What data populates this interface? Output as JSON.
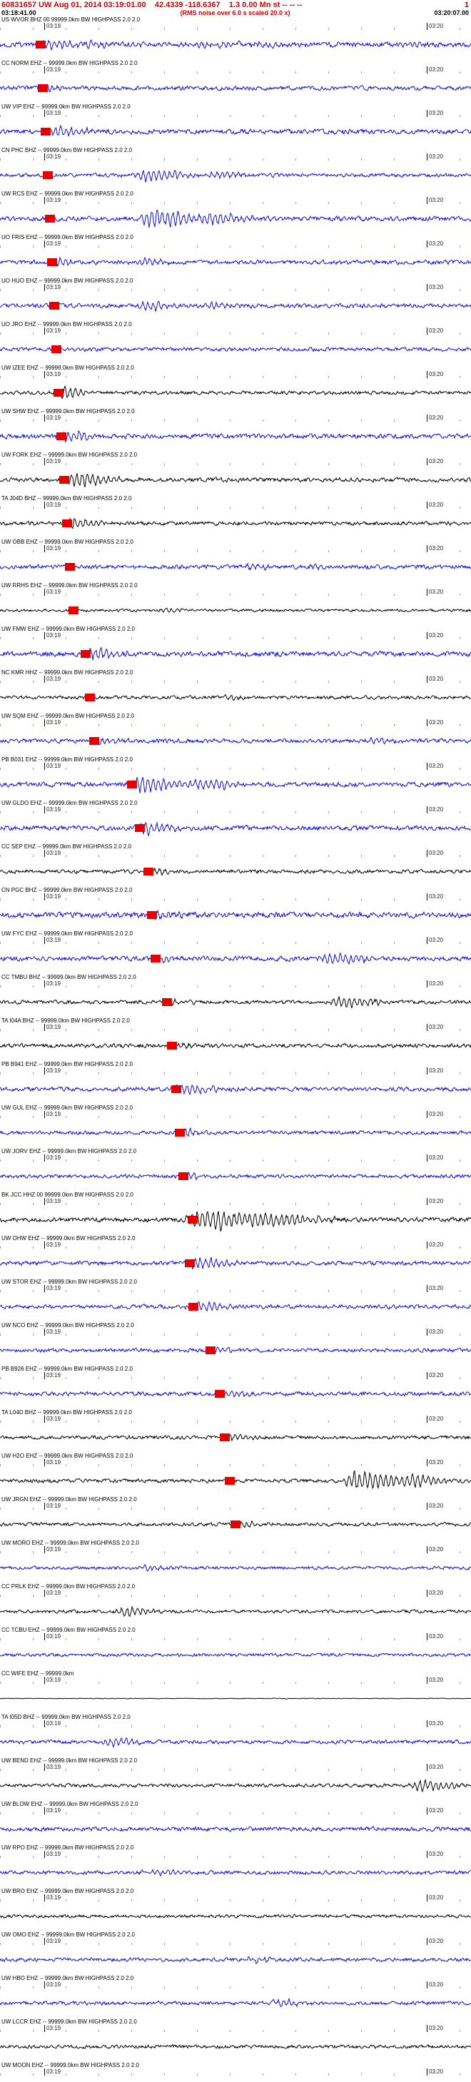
{
  "colors": {
    "b": "#0d0de0",
    "k": "#000000",
    "red": "#e60000",
    "header": "#d40000"
  },
  "header": {
    "event_line": "60831657 UW Aug 01, 2014 03:19:01.00    42.4339 -118.6367    1.3 0.00 Mn st -- -- --",
    "event_flag": "1",
    "window_start": "03:18:41.00",
    "rms_note": "(RMS noise over 6.0 s scaled 20.0 x)",
    "window_end": "03:20:07.00"
  },
  "axis": {
    "tick_left_label": "03:19",
    "tick_right_label": "03:20",
    "tick_left_x": 62,
    "tick_right_x": 598
  },
  "traces": [
    {
      "l": "US WVOR BHZ 00 99999.0km BW HIGHPASS 2.0 2.0",
      "c": "b",
      "p": 57,
      "n": 2.2,
      "b": [
        [
          70,
          35,
          8
        ],
        [
          130,
          60,
          4
        ],
        [
          300,
          120,
          3
        ]
      ]
    },
    {
      "l": "CC NORM EHZ -- 99999.0km BW HIGHPASS 2.0 2.0",
      "c": "b",
      "p": 60,
      "n": 1.8,
      "b": [
        [
          70,
          25,
          5
        ]
      ]
    },
    {
      "l": "UW VIP EHZ -- 99999.0km BW HIGHPASS 2.0 2.0",
      "c": "b",
      "p": 64,
      "n": 2.0,
      "b": [
        [
          76,
          30,
          7
        ],
        [
          110,
          40,
          4
        ]
      ]
    },
    {
      "l": "CN PHC BHZ -- 99999.0km BW HIGHPASS 2.0 2.0",
      "c": "b",
      "p": 67,
      "n": 1.6,
      "b": [
        [
          205,
          55,
          9
        ],
        [
          300,
          40,
          5
        ]
      ]
    },
    {
      "l": "UW RCS EHZ -- 99999.0km BW HIGHPASS 2.0 2.0",
      "c": "b",
      "p": 70,
      "n": 2.0,
      "b": [
        [
          215,
          70,
          13
        ],
        [
          300,
          50,
          7
        ]
      ]
    },
    {
      "l": "UO FRIS EHZ -- 99999.0km BW HIGHPASS 2.0 2.0",
      "c": "b",
      "p": 73,
      "n": 1.8,
      "b": [
        [
          80,
          25,
          5
        ],
        [
          205,
          40,
          4
        ]
      ]
    },
    {
      "l": "UO HUO EHZ -- 99999.0km BW HIGHPASS 2.0 2.0",
      "c": "b",
      "p": 76,
      "n": 1.8,
      "b": [
        [
          205,
          45,
          6
        ],
        [
          300,
          35,
          4
        ]
      ]
    },
    {
      "l": "UO JRO EHZ -- 99999.0km BW HIGHPASS 2.0 2.0",
      "c": "b",
      "p": 79,
      "n": 1.6,
      "b": [
        [
          90,
          20,
          3
        ]
      ]
    },
    {
      "l": "UW IZEE EHZ -- 99999.0km BW HIGHPASS 2.0 2.0",
      "c": "k",
      "p": 82,
      "n": 1.5,
      "b": [
        [
          88,
          30,
          9
        ]
      ]
    },
    {
      "l": "UW SHW EHZ -- 99999.0km BW HIGHPASS 2.0 2.0",
      "c": "b",
      "p": 86,
      "n": 2.0,
      "b": [
        [
          92,
          35,
          10
        ]
      ]
    },
    {
      "l": "UW FORK EHZ -- 99999.0km BW HIGHPASS 2.0 2.0",
      "c": "k",
      "p": 90,
      "n": 1.8,
      "b": [
        [
          108,
          50,
          10
        ]
      ]
    },
    {
      "l": "TA J04D BHZ -- 99999.0km BW HIGHPASS 2.0 2.0",
      "c": "k",
      "p": 94,
      "n": 1.6,
      "b": [
        [
          100,
          40,
          8
        ]
      ]
    },
    {
      "l": "UW OBB EHZ -- 99999.0km BW HIGHPASS 2.0 2.0",
      "c": "b",
      "p": 98,
      "n": 1.8,
      "b": [
        [
          350,
          30,
          4
        ],
        [
          440,
          25,
          4
        ]
      ]
    },
    {
      "l": "UW RRHS EHZ -- 99999.0km BW HIGHPASS 2.0 2.0",
      "c": "k",
      "p": 103,
      "n": 1.2,
      "b": [
        [
          230,
          30,
          3
        ]
      ]
    },
    {
      "l": "UW FMW EHZ -- 99999.0km BW HIGHPASS 2.0 2.0",
      "c": "b",
      "p": 120,
      "n": 2.2,
      "b": [
        [
          128,
          40,
          7
        ]
      ]
    },
    {
      "l": "NC KMR HHZ -- 99999.0km BW HIGHPASS 2.0 2.0",
      "c": "k",
      "p": 126,
      "n": 1.5,
      "b": [
        [
          320,
          25,
          3
        ]
      ]
    },
    {
      "l": "UW SQM EHZ -- 99999.0km BW HIGHPASS 2.0 2.0",
      "c": "b",
      "p": 132,
      "n": 1.8,
      "b": [
        [
          140,
          30,
          5
        ],
        [
          520,
          30,
          4
        ]
      ]
    },
    {
      "l": "PB B031 EHZ -- 99999.0km BW HIGHPASS 2.0 2.0",
      "c": "b",
      "p": 185,
      "n": 2.0,
      "b": [
        [
          195,
          60,
          12
        ],
        [
          280,
          60,
          6
        ]
      ]
    },
    {
      "l": "UW GLDO EHZ -- 99999.0km BW HIGHPASS 2.0 2.0",
      "c": "b",
      "p": 196,
      "n": 2.0,
      "b": [
        [
          205,
          45,
          8
        ]
      ]
    },
    {
      "l": "CC SEP EHZ -- 99999.0km BW HIGHPASS 2.0 2.0",
      "c": "k",
      "p": 208,
      "n": 1.6,
      "b": [
        [
          215,
          30,
          4
        ]
      ]
    },
    {
      "l": "CN PGC BHZ -- 99999.0km BW HIGHPASS 2.0 2.0",
      "c": "b",
      "p": 213,
      "n": 2.4,
      "b": [
        [
          220,
          35,
          5
        ]
      ]
    },
    {
      "l": "UW FYC EHZ -- 99999.0km BW HIGHPASS 2.0 2.0",
      "c": "b",
      "p": 218,
      "n": 2.0,
      "b": [
        [
          225,
          30,
          4
        ],
        [
          465,
          55,
          8
        ]
      ]
    },
    {
      "l": "CC TMBU BHZ -- 99999.0km BW HIGHPASS 2.0 2.0",
      "c": "k",
      "p": 234,
      "n": 1.6,
      "b": [
        [
          240,
          25,
          4
        ],
        [
          478,
          50,
          8
        ]
      ]
    },
    {
      "l": "TA I04A BHZ -- 99999.0km BW HIGHPASS 2.0 2.0",
      "c": "k",
      "p": 241,
      "n": 1.8,
      "b": [
        [
          248,
          25,
          4
        ]
      ]
    },
    {
      "l": "PB B941 EHZ -- 99999.0km BW HIGHPASS 2.0 2.0",
      "c": "b",
      "p": 247,
      "n": 1.8,
      "b": [
        [
          255,
          45,
          7
        ]
      ]
    },
    {
      "l": "UW GUL EHZ -- 99999.0km BW HIGHPASS 2.0 2.0",
      "c": "b",
      "p": 252,
      "n": 1.6,
      "b": [
        [
          260,
          30,
          5
        ]
      ]
    },
    {
      "l": "UW JORV EHZ -- 99999.0km BW HIGHPASS 2.0 2.0",
      "c": "b",
      "p": 257,
      "n": 1.6,
      "b": [
        [
          265,
          25,
          4
        ]
      ]
    },
    {
      "l": "BK JCC HHZ 00 99999.0km BW HIGHPASS 2.0 2.0",
      "c": "k",
      "p": 270,
      "n": 2.0,
      "b": [
        [
          285,
          80,
          15
        ],
        [
          380,
          80,
          7
        ]
      ]
    },
    {
      "l": "UW OHW EHZ -- 99999.0km BW HIGHPASS 2.0 2.0",
      "c": "b",
      "p": 266,
      "n": 1.8,
      "b": [
        [
          275,
          50,
          9
        ]
      ]
    },
    {
      "l": "UW STOR EHZ -- 99999.0km BW HIGHPASS 2.0 2.0",
      "c": "b",
      "p": 271,
      "n": 1.8,
      "b": [
        [
          280,
          40,
          6
        ]
      ]
    },
    {
      "l": "UW NCO EHZ -- 99999.0km BW HIGHPASS 2.0 2.0",
      "c": "b",
      "p": 295,
      "n": 1.6,
      "b": [
        [
          300,
          30,
          4
        ]
      ]
    },
    {
      "l": "PB B926 EHZ -- 99999.0km BW HIGHPASS 2.0 2.0",
      "c": "b",
      "p": 308,
      "n": 1.8,
      "b": [
        [
          315,
          35,
          5
        ]
      ]
    },
    {
      "l": "TA L04D BHZ -- 99999.0km BW HIGHPASS 2.0 2.0",
      "c": "k",
      "p": 315,
      "n": 1.5,
      "b": [
        [
          322,
          30,
          4
        ]
      ]
    },
    {
      "l": "UW H2O EHZ -- 99999.0km BW HIGHPASS 2.0 2.0",
      "c": "k",
      "p": 322,
      "n": 1.6,
      "b": [
        [
          500,
          70,
          14
        ],
        [
          580,
          50,
          6
        ]
      ]
    },
    {
      "l": "UW JRGN EHZ -- 99999.0km BW HIGHPASS 2.0 2.0",
      "c": "k",
      "p": 330,
      "n": 1.5,
      "b": [
        [
          335,
          35,
          5
        ]
      ]
    },
    {
      "l": "UW MORO EHZ -- 99999.0km BW HIGHPASS 2.0 2.0",
      "c": "b",
      "p": null,
      "n": 1.4,
      "b": [
        [
          200,
          40,
          3
        ]
      ]
    },
    {
      "l": "CC PRLK EHZ -- 99999.0km BW HIGHPASS 2.0 2.0",
      "c": "k",
      "p": null,
      "n": 1.4,
      "b": [
        [
          175,
          40,
          7
        ]
      ]
    },
    {
      "l": "CC TCBU EHZ -- 99999.0km BW HIGHPASS 2.0 2.0",
      "c": "b",
      "p": null,
      "n": 1.4,
      "b": []
    },
    {
      "l": "CC WIFE EHZ -- 99999.0km",
      "c": "k",
      "p": null,
      "n": 0.3,
      "b": []
    },
    {
      "l": "TA I05D BHZ -- 99999.0km BW HIGHPASS 2.0 2.0",
      "c": "b",
      "p": null,
      "n": 1.6,
      "b": [
        [
          150,
          40,
          6
        ]
      ]
    },
    {
      "l": "UW BEND EHZ -- 99999.0km BW HIGHPASS 2.0 2.0",
      "c": "k",
      "p": null,
      "n": 1.5,
      "b": [
        [
          590,
          50,
          8
        ]
      ]
    },
    {
      "l": "UW BLOW EHZ -- 99999.0km BW HIGHPASS 2.0 2.0",
      "c": "b",
      "p": null,
      "n": 1.8,
      "b": []
    },
    {
      "l": "UW RPO EHZ -- 99999.0km BW HIGHPASS 2.0 2.0",
      "c": "b",
      "p": null,
      "n": 1.6,
      "b": [
        [
          210,
          50,
          4
        ]
      ]
    },
    {
      "l": "UW BRO EHZ -- 99999.0km BW HIGHPASS 2.0 2.0",
      "c": "k",
      "p": null,
      "n": 1.4,
      "b": []
    },
    {
      "l": "UW OMO EHZ -- 99999.0km BW HIGHPASS 2.0 2.0",
      "c": "b",
      "p": null,
      "n": 1.6,
      "b": [
        [
          350,
          40,
          4
        ]
      ]
    },
    {
      "l": "UW HBO EHZ -- 99999.0km BW HIGHPASS 2.0 2.0",
      "c": "b",
      "p": null,
      "n": 1.6,
      "b": [
        [
          390,
          40,
          5
        ]
      ]
    },
    {
      "l": "UW LCCR EHZ -- 99999.0km BW HIGHPASS 2.0 2.0",
      "c": "k",
      "p": null,
      "n": 1.5,
      "b": []
    },
    {
      "l": "UW MOON EHZ -- 99999.0km BW HIGHPASS 2.0 2.0",
      "c": "b",
      "p": null,
      "n": 1.6,
      "b": []
    }
  ]
}
